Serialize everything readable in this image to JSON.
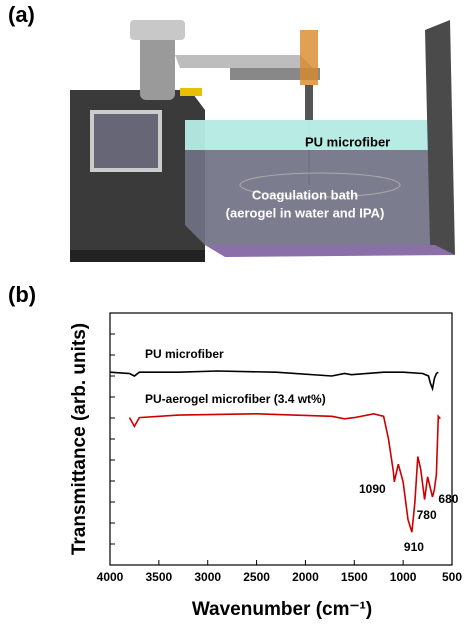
{
  "diagram": {
    "panel_label": "(a)",
    "liquid_label": "PU microfiber",
    "bath_label": "Coagulation bath",
    "bath_sublabel": "(aerogel in water and IPA)"
  },
  "chart_data": {
    "type": "line",
    "panel_label": "(b)",
    "x_label": "Wavenumber (cm⁻¹)",
    "y_label": "Transmittance (arb. units)",
    "xlim": [
      4000,
      500
    ],
    "ylim": [
      0,
      10
    ],
    "xticks": [
      4000,
      3500,
      3000,
      2500,
      2000,
      1500,
      1000,
      500
    ],
    "series": [
      {
        "name": "PU microfiber",
        "color": "#000000",
        "x": [
          4000,
          3800,
          3750,
          3700,
          3300,
          2900,
          2300,
          1730,
          1600,
          1530,
          1200,
          1000,
          800,
          740,
          720,
          700,
          680,
          660,
          640
        ],
        "values": [
          7.65,
          7.6,
          7.5,
          7.65,
          7.65,
          7.7,
          7.65,
          7.5,
          7.6,
          7.55,
          7.65,
          7.65,
          7.6,
          7.5,
          7.2,
          7.0,
          7.4,
          7.6,
          7.65
        ]
      },
      {
        "name": "PU-aerogel microfiber (3.4 wt%)",
        "color": "#cc0000",
        "x": [
          3800,
          3750,
          3700,
          3300,
          2500,
          1730,
          1600,
          1500,
          1300,
          1200,
          1150,
          1100,
          1090,
          1050,
          1000,
          950,
          910,
          880,
          850,
          820,
          780,
          750,
          700,
          680,
          660,
          640,
          620
        ],
        "values": [
          5.85,
          5.5,
          5.85,
          5.95,
          6.0,
          5.9,
          5.8,
          5.85,
          6.0,
          5.9,
          5.0,
          3.7,
          3.3,
          4.0,
          3.3,
          1.8,
          1.3,
          2.5,
          4.3,
          3.8,
          2.6,
          3.5,
          2.7,
          3.0,
          3.6,
          5.9,
          5.8
        ]
      }
    ],
    "peaks": [
      1090,
      910,
      780,
      680
    ]
  }
}
